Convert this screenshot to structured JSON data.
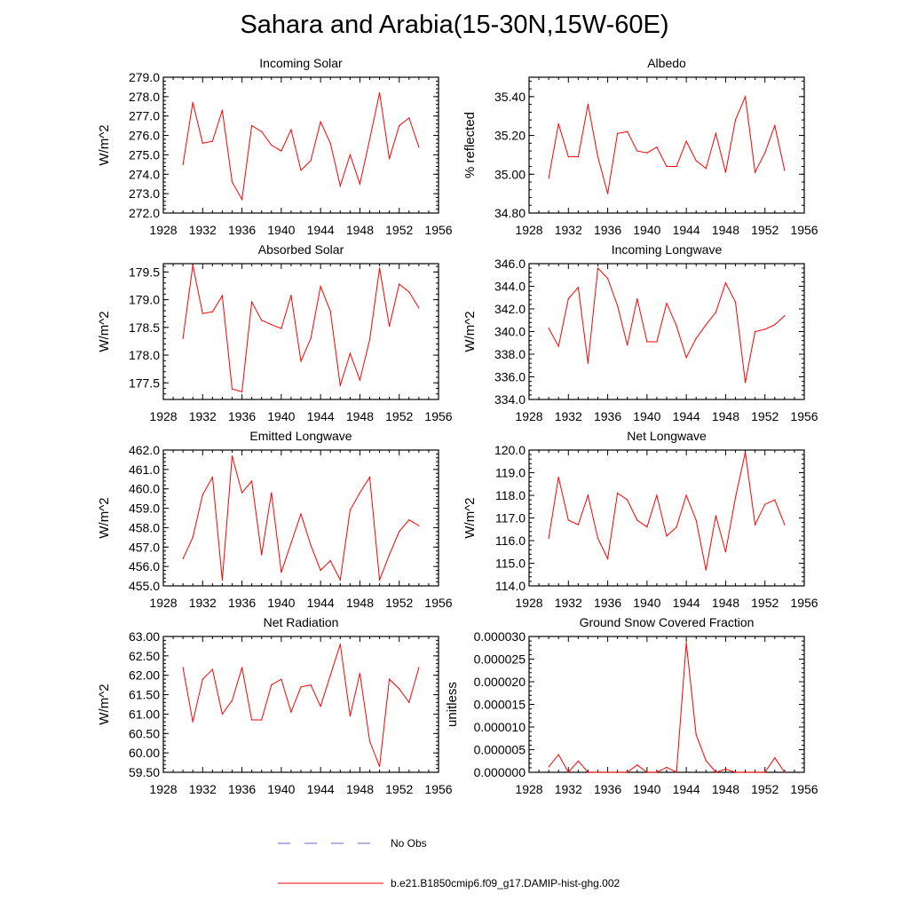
{
  "title": "Sahara and Arabia(15-30N,15W-60E)",
  "colors": {
    "model_line": "#ff0000",
    "obs_line": "#6666cc",
    "axis": "#000000"
  },
  "legend": [
    {
      "label": "No Obs",
      "style": "dashed",
      "color": "#6666cc"
    },
    {
      "label": "b.e21.B1850cmip6.f09_g17.DAMIP-hist-ghg.002",
      "style": "solid",
      "color": "#ff0000"
    }
  ],
  "chart_data": [
    {
      "type": "line",
      "title": "Incoming Solar",
      "ylabel": "W/m^2",
      "xlabel": "",
      "xlim": [
        1928,
        1956
      ],
      "ylim": [
        272.0,
        279.0
      ],
      "xticks": [
        "1928",
        "1932",
        "1936",
        "1940",
        "1944",
        "1948",
        "1952",
        "1956"
      ],
      "yticks": [
        "272.0",
        "273.0",
        "274.0",
        "275.0",
        "276.0",
        "277.0",
        "278.0",
        "279.0"
      ],
      "series": [
        {
          "x": [
            1930,
            1931,
            1932,
            1933,
            1934,
            1935,
            1936,
            1937,
            1938,
            1939,
            1940,
            1941,
            1942,
            1943,
            1944,
            1945,
            1946,
            1947,
            1948,
            1949,
            1950,
            1951,
            1952,
            1953,
            1954
          ],
          "values": [
            274.5,
            277.7,
            275.6,
            275.7,
            277.3,
            273.6,
            272.7,
            276.5,
            276.2,
            275.5,
            275.2,
            276.3,
            274.2,
            274.7,
            276.7,
            275.6,
            273.4,
            275.0,
            273.5,
            275.8,
            278.2,
            274.8,
            276.5,
            276.9,
            275.4
          ]
        }
      ]
    },
    {
      "type": "line",
      "title": "Albedo",
      "ylabel": "% reflected",
      "xlabel": "",
      "xlim": [
        1928,
        1956
      ],
      "ylim": [
        34.8,
        35.5
      ],
      "xticks": [
        "1928",
        "1932",
        "1936",
        "1940",
        "1944",
        "1948",
        "1952",
        "1956"
      ],
      "yticks": [
        "34.80",
        "35.00",
        "35.20",
        "35.40"
      ],
      "series": [
        {
          "x": [
            1930,
            1931,
            1932,
            1933,
            1934,
            1935,
            1936,
            1937,
            1938,
            1939,
            1940,
            1941,
            1942,
            1943,
            1944,
            1945,
            1946,
            1947,
            1948,
            1949,
            1950,
            1951,
            1952,
            1953,
            1954
          ],
          "values": [
            34.98,
            35.26,
            35.09,
            35.09,
            35.36,
            35.09,
            34.9,
            35.21,
            35.22,
            35.12,
            35.11,
            35.14,
            35.04,
            35.04,
            35.17,
            35.07,
            35.03,
            35.21,
            35.01,
            35.28,
            35.4,
            35.01,
            35.11,
            35.25,
            35.02
          ]
        }
      ]
    },
    {
      "type": "line",
      "title": "Absorbed Solar",
      "ylabel": "W/m^2",
      "xlabel": "",
      "xlim": [
        1928,
        1956
      ],
      "ylim": [
        177.2,
        179.65
      ],
      "xticks": [
        "1928",
        "1932",
        "1936",
        "1940",
        "1944",
        "1948",
        "1952",
        "1956"
      ],
      "yticks": [
        "177.5",
        "178.0",
        "178.5",
        "179.0",
        "179.5"
      ],
      "series": [
        {
          "x": [
            1930,
            1931,
            1932,
            1933,
            1934,
            1935,
            1936,
            1937,
            1938,
            1939,
            1940,
            1941,
            1942,
            1943,
            1944,
            1945,
            1946,
            1947,
            1948,
            1949,
            1950,
            1951,
            1952,
            1953,
            1954
          ],
          "values": [
            178.3,
            179.62,
            178.75,
            178.78,
            179.07,
            177.39,
            177.34,
            178.96,
            178.63,
            178.55,
            178.48,
            179.08,
            177.89,
            178.3,
            179.24,
            178.79,
            177.45,
            178.03,
            177.55,
            178.28,
            179.57,
            178.52,
            179.28,
            179.14,
            178.85
          ]
        }
      ]
    },
    {
      "type": "line",
      "title": "Incoming Longwave",
      "ylabel": "W/m^2",
      "xlabel": "",
      "xlim": [
        1928,
        1956
      ],
      "ylim": [
        334.0,
        346.0
      ],
      "xticks": [
        "1928",
        "1932",
        "1936",
        "1940",
        "1944",
        "1948",
        "1952",
        "1956"
      ],
      "yticks": [
        "334.0",
        "336.0",
        "338.0",
        "340.0",
        "342.0",
        "344.0",
        "346.0"
      ],
      "series": [
        {
          "x": [
            1930,
            1931,
            1932,
            1933,
            1934,
            1935,
            1936,
            1937,
            1938,
            1939,
            1940,
            1941,
            1942,
            1943,
            1944,
            1945,
            1946,
            1947,
            1948,
            1949,
            1950,
            1951,
            1952,
            1953,
            1954
          ],
          "values": [
            340.3,
            338.7,
            342.9,
            343.9,
            337.2,
            345.6,
            344.7,
            342.3,
            338.8,
            342.9,
            339.1,
            339.1,
            342.5,
            340.5,
            337.7,
            339.4,
            340.6,
            341.7,
            344.3,
            342.6,
            335.5,
            340.0,
            340.2,
            340.6,
            341.4
          ]
        }
      ]
    },
    {
      "type": "line",
      "title": "Emitted Longwave",
      "ylabel": "W/m^2",
      "xlabel": "",
      "xlim": [
        1928,
        1956
      ],
      "ylim": [
        455.0,
        462.0
      ],
      "xticks": [
        "1928",
        "1932",
        "1936",
        "1940",
        "1944",
        "1948",
        "1952",
        "1956"
      ],
      "yticks": [
        "455.0",
        "456.0",
        "457.0",
        "458.0",
        "459.0",
        "460.0",
        "461.0",
        "462.0"
      ],
      "series": [
        {
          "x": [
            1930,
            1931,
            1932,
            1933,
            1934,
            1935,
            1936,
            1937,
            1938,
            1939,
            1940,
            1941,
            1942,
            1943,
            1944,
            1945,
            1946,
            1947,
            1948,
            1949,
            1950,
            1951,
            1952,
            1953,
            1954
          ],
          "values": [
            456.4,
            457.5,
            459.7,
            460.6,
            455.3,
            461.7,
            459.8,
            460.4,
            456.6,
            459.8,
            455.7,
            457.2,
            458.7,
            457.1,
            455.8,
            456.3,
            455.3,
            458.9,
            459.8,
            460.6,
            455.3,
            456.6,
            457.8,
            458.4,
            458.1
          ]
        }
      ]
    },
    {
      "type": "line",
      "title": "Net Longwave",
      "ylabel": "W/m^2",
      "xlabel": "",
      "xlim": [
        1928,
        1956
      ],
      "ylim": [
        114.0,
        120.0
      ],
      "xticks": [
        "1928",
        "1932",
        "1936",
        "1940",
        "1944",
        "1948",
        "1952",
        "1956"
      ],
      "yticks": [
        "114.0",
        "115.0",
        "116.0",
        "117.0",
        "118.0",
        "119.0",
        "120.0"
      ],
      "series": [
        {
          "x": [
            1930,
            1931,
            1932,
            1933,
            1934,
            1935,
            1936,
            1937,
            1938,
            1939,
            1940,
            1941,
            1942,
            1943,
            1944,
            1945,
            1946,
            1947,
            1948,
            1949,
            1950,
            1951,
            1952,
            1953,
            1954
          ],
          "values": [
            116.1,
            118.8,
            116.9,
            116.7,
            118.0,
            116.1,
            115.2,
            118.1,
            117.8,
            116.9,
            116.6,
            118.0,
            116.2,
            116.6,
            118.0,
            116.9,
            114.7,
            117.1,
            115.5,
            117.9,
            119.9,
            116.7,
            117.6,
            117.8,
            116.7
          ]
        }
      ]
    },
    {
      "type": "line",
      "title": "Net Radiation",
      "ylabel": "W/m^2",
      "xlabel": "",
      "xlim": [
        1928,
        1956
      ],
      "ylim": [
        59.5,
        63.0
      ],
      "xticks": [
        "1928",
        "1932",
        "1936",
        "1940",
        "1944",
        "1948",
        "1952",
        "1956"
      ],
      "yticks": [
        "59.50",
        "60.00",
        "60.50",
        "61.00",
        "61.50",
        "62.00",
        "62.50",
        "63.00"
      ],
      "series": [
        {
          "x": [
            1930,
            1931,
            1932,
            1933,
            1934,
            1935,
            1936,
            1937,
            1938,
            1939,
            1940,
            1941,
            1942,
            1943,
            1944,
            1945,
            1946,
            1947,
            1948,
            1949,
            1950,
            1951,
            1952,
            1953,
            1954
          ],
          "values": [
            62.2,
            60.8,
            61.9,
            62.15,
            61.0,
            61.35,
            62.2,
            60.85,
            60.85,
            61.75,
            61.9,
            61.05,
            61.7,
            61.75,
            61.2,
            62.0,
            62.8,
            60.95,
            62.05,
            60.3,
            59.65,
            61.9,
            61.65,
            61.3,
            62.2
          ]
        }
      ]
    },
    {
      "type": "line",
      "title": "Ground Snow Covered Fraction",
      "ylabel": "unitless",
      "xlabel": "",
      "xlim": [
        1928,
        1956
      ],
      "ylim": [
        0.0,
        3e-05
      ],
      "xticks": [
        "1928",
        "1932",
        "1936",
        "1940",
        "1944",
        "1948",
        "1952",
        "1956"
      ],
      "yticks": [
        "0.000000",
        "0.000005",
        "0.000010",
        "0.000015",
        "0.000020",
        "0.000025",
        "0.000030"
      ],
      "series": [
        {
          "x": [
            1930,
            1931,
            1932,
            1933,
            1934,
            1935,
            1936,
            1937,
            1938,
            1939,
            1940,
            1941,
            1942,
            1943,
            1944,
            1945,
            1946,
            1947,
            1948,
            1949,
            1950,
            1951,
            1952,
            1953,
            1954
          ],
          "values": [
            1.2e-06,
            3.9e-06,
            0.0,
            2.5e-06,
            0.0,
            0.0,
            0.0,
            0.0,
            0.0,
            1.6e-06,
            0.0,
            0.0,
            1.1e-06,
            0.0,
            2.86e-05,
            8.3e-06,
            2.6e-06,
            0.0,
            7e-07,
            0.0,
            0.0,
            0.0,
            0.0,
            3.2e-06,
            0.0
          ]
        }
      ]
    }
  ]
}
